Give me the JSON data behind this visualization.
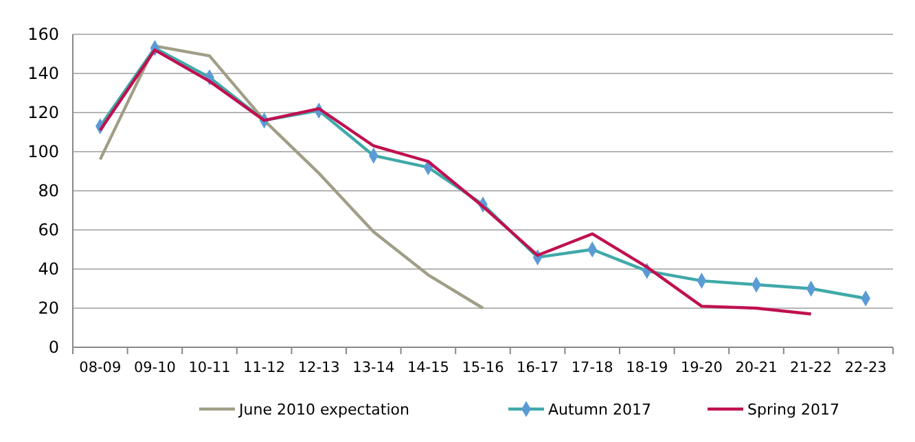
{
  "chart_data": {
    "type": "line",
    "categories": [
      "08-09",
      "09-10",
      "10-11",
      "11-12",
      "12-13",
      "13-14",
      "14-15",
      "15-16",
      "16-17",
      "17-18",
      "18-19",
      "19-20",
      "20-21",
      "21-22",
      "22-23"
    ],
    "series": [
      {
        "name": "June 2010 expectation",
        "color": "#a09e86",
        "marker": "none",
        "values": [
          96,
          154,
          149,
          116,
          89,
          59,
          37,
          20,
          null,
          null,
          null,
          null,
          null,
          null,
          null
        ]
      },
      {
        "name": "Autumn 2017",
        "color": "#3fa9a9",
        "marker": "diamond",
        "values": [
          113,
          153,
          138,
          116,
          121,
          98,
          92,
          73,
          46,
          50,
          39,
          34,
          32,
          30,
          25
        ]
      },
      {
        "name": "Spring 2017",
        "color": "#c0104f",
        "marker": "none",
        "values": [
          111,
          152,
          136,
          116,
          122,
          103,
          95,
          72,
          47,
          58,
          41,
          21,
          20,
          17,
          null
        ]
      }
    ],
    "ylim": [
      0,
      160
    ],
    "yticks": [
      0,
      20,
      40,
      60,
      80,
      100,
      120,
      140,
      160
    ],
    "grid": "y",
    "legend": "bottom",
    "line_style": "solid"
  }
}
